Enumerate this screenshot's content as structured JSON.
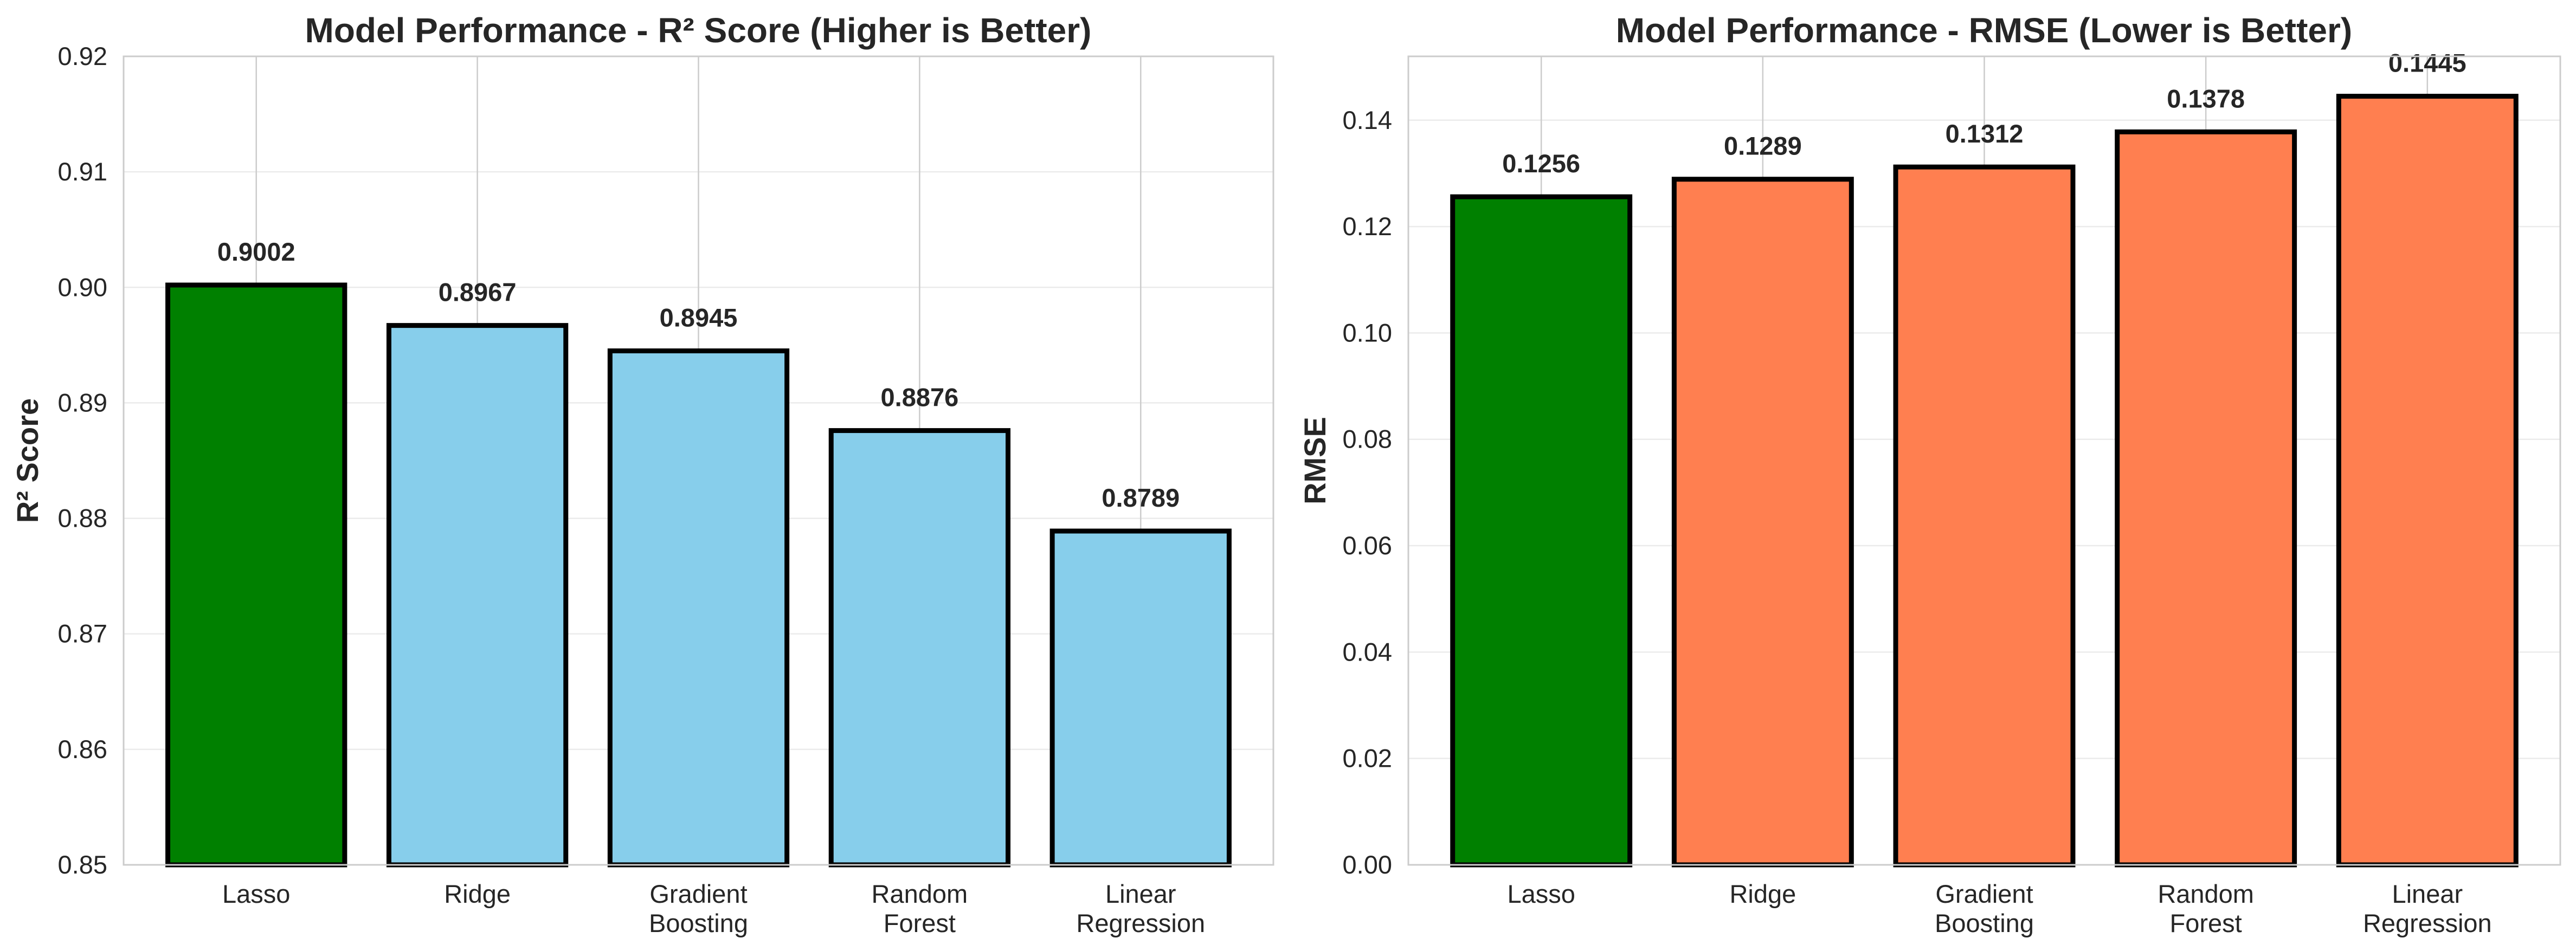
{
  "chart_data": [
    {
      "type": "bar",
      "title": "Model Performance - R² Score (Higher is Better)",
      "xlabel": "",
      "ylabel": "R² Score",
      "categories": [
        "Lasso",
        "Ridge",
        "Gradient Boosting",
        "Random Forest",
        "Linear Regression"
      ],
      "category_lines": [
        [
          "Lasso"
        ],
        [
          "Ridge"
        ],
        [
          "Gradient",
          "Boosting"
        ],
        [
          "Random",
          "Forest"
        ],
        [
          "Linear",
          "Regression"
        ]
      ],
      "values": [
        0.9002,
        0.8967,
        0.8945,
        0.8876,
        0.8789
      ],
      "value_labels": [
        "0.9002",
        "0.8967",
        "0.8945",
        "0.8876",
        "0.8789"
      ],
      "bar_colors": [
        "#008000",
        "#87ceeb",
        "#87ceeb",
        "#87ceeb",
        "#87ceeb"
      ],
      "ylim": [
        0.85,
        0.92
      ],
      "yticks": [
        0.85,
        0.86,
        0.87,
        0.88,
        0.89,
        0.9,
        0.91,
        0.92
      ],
      "ytick_labels": [
        "0.85",
        "0.86",
        "0.87",
        "0.88",
        "0.89",
        "0.90",
        "0.91",
        "0.92"
      ],
      "grid": true,
      "legend": "none"
    },
    {
      "type": "bar",
      "title": "Model Performance - RMSE (Lower is Better)",
      "xlabel": "",
      "ylabel": "RMSE",
      "categories": [
        "Lasso",
        "Ridge",
        "Gradient Boosting",
        "Random Forest",
        "Linear Regression"
      ],
      "category_lines": [
        [
          "Lasso"
        ],
        [
          "Ridge"
        ],
        [
          "Gradient",
          "Boosting"
        ],
        [
          "Random",
          "Forest"
        ],
        [
          "Linear",
          "Regression"
        ]
      ],
      "values": [
        0.1256,
        0.1289,
        0.1312,
        0.1378,
        0.1445
      ],
      "value_labels": [
        "0.1256",
        "0.1289",
        "0.1312",
        "0.1378",
        "0.1445"
      ],
      "bar_colors": [
        "#008000",
        "#ff7f50",
        "#ff7f50",
        "#ff7f50",
        "#ff7f50"
      ],
      "ylim": [
        0,
        0.152
      ],
      "yticks": [
        0,
        0.02,
        0.04,
        0.06,
        0.08,
        0.1,
        0.12,
        0.14
      ],
      "ytick_labels": [
        "0.00",
        "0.02",
        "0.04",
        "0.06",
        "0.08",
        "0.10",
        "0.12",
        "0.14"
      ],
      "grid": true,
      "legend": "none"
    }
  ]
}
